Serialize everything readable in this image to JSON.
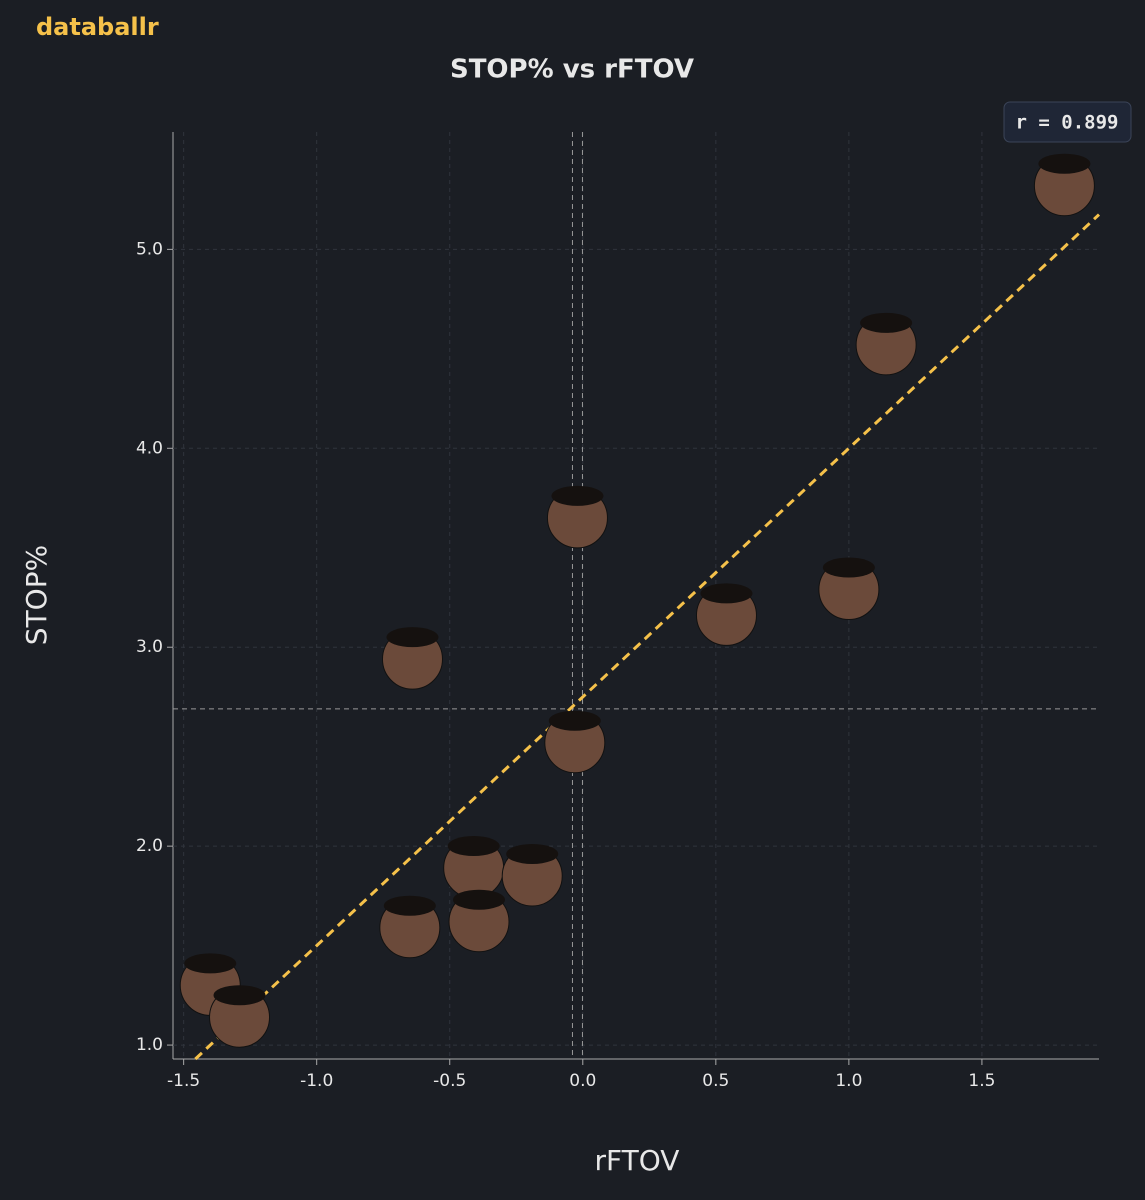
{
  "brand": "databallr",
  "chart_data": {
    "type": "scatter",
    "title": "STOP% vs rFTOV",
    "x_label": "rFTOV",
    "y_label": "STOP%",
    "annotation": "r = 0.899",
    "series": [
      {
        "color": "#6b4a3a",
        "x": [
          1.81,
          1.14,
          -0.02,
          1.0,
          0.54,
          -0.64,
          -0.03,
          -0.41,
          -0.19,
          -0.65,
          -0.39,
          -1.4,
          -1.29
        ],
        "values": [
          5.32,
          4.52,
          3.65,
          3.29,
          3.16,
          2.94,
          2.52,
          1.89,
          1.85,
          1.59,
          1.62,
          1.3,
          1.14
        ]
      }
    ],
    "trendline": {
      "slope": 1.25,
      "intercept": 2.75,
      "color": "#f5c14a"
    },
    "reference_lines": {
      "x": -0.02,
      "y": 2.69
    },
    "xlim": [
      -1.54,
      1.94
    ],
    "ylim": [
      0.93,
      5.59
    ],
    "xticks": [
      -1.5,
      {
        "value": -1,
        "label": "-1.0"
      },
      -0.5,
      {
        "value": 0,
        "label": "0.0"
      },
      0.5,
      {
        "value": 1,
        "label": "1.0"
      },
      1.5
    ],
    "yticks": [
      {
        "value": 1,
        "label": "1.0"
      },
      {
        "value": 2,
        "label": "2.0"
      },
      {
        "value": 3,
        "label": "3.0"
      },
      {
        "value": 4,
        "label": "4.0"
      },
      {
        "value": 5,
        "label": "5.0"
      }
    ],
    "grid": true
  }
}
